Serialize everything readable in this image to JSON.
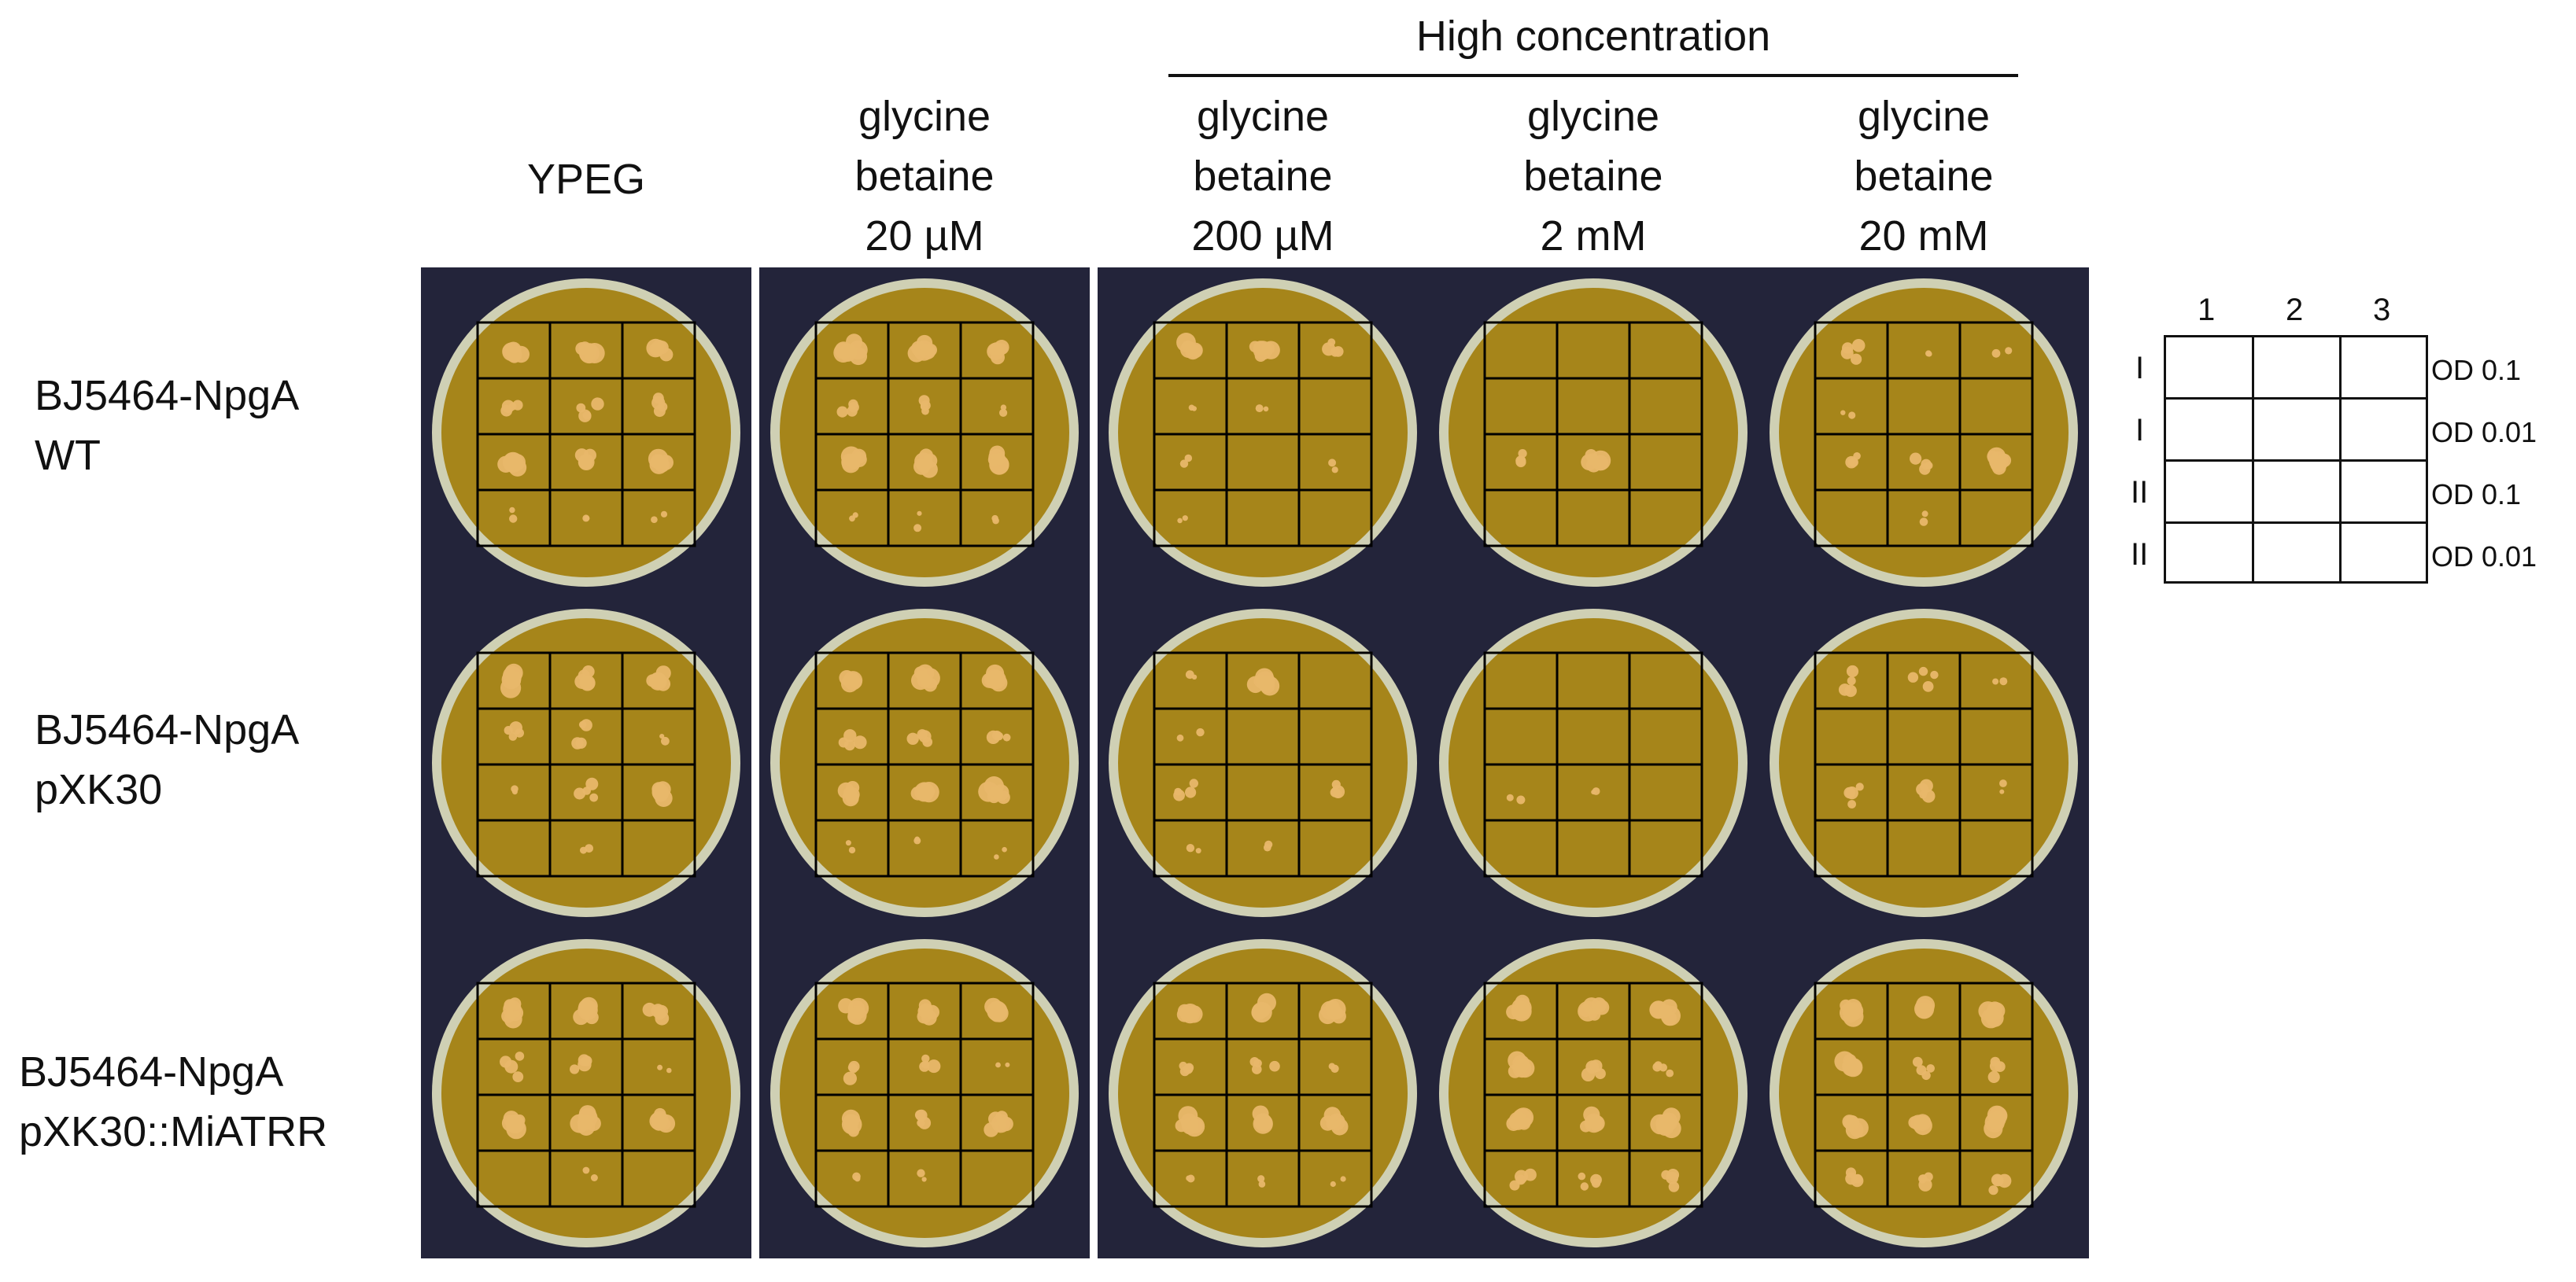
{
  "figure": {
    "high_concentration_label": "High concentration",
    "conditions": [
      {
        "lines": [
          "YPEG"
        ]
      },
      {
        "lines": [
          "glycine",
          "betaine",
          "20 µM"
        ]
      },
      {
        "lines": [
          "glycine",
          "betaine",
          "200 µM"
        ]
      },
      {
        "lines": [
          "glycine",
          "betaine",
          "2 mM"
        ]
      },
      {
        "lines": [
          "glycine",
          "betaine",
          "20 mM"
        ]
      }
    ],
    "strains": [
      {
        "lines": [
          "BJ5464-NpgA",
          "WT"
        ]
      },
      {
        "lines": [
          "BJ5464-NpgA",
          "pXK30"
        ]
      },
      {
        "lines": [
          "BJ5464-NpgA",
          "pXK30::MiATRR"
        ]
      }
    ]
  },
  "legend": {
    "columns": [
      "1",
      "2",
      "3"
    ],
    "rows": [
      {
        "roman": "I",
        "od": "OD 0.1"
      },
      {
        "roman": "I",
        "od": "OD 0.01"
      },
      {
        "roman": "II",
        "od": "OD 0.1"
      },
      {
        "roman": "II",
        "od": "OD 0.01"
      }
    ]
  },
  "colors": {
    "plate_background": "#23243a",
    "agar": "#a6851a",
    "agar_rim": "#cfd0b4",
    "colony": "#e8b76a",
    "grid_line": "#000000"
  },
  "plates": [
    [
      [
        3,
        3,
        3
      ],
      [
        2,
        2,
        2
      ],
      [
        3,
        3,
        3
      ],
      [
        1,
        1,
        1
      ]
    ],
    [
      [
        3,
        3,
        3
      ],
      [
        2,
        2,
        1
      ],
      [
        3,
        3,
        3
      ],
      [
        1,
        1,
        1
      ]
    ],
    [
      [
        3,
        3,
        2
      ],
      [
        1,
        1,
        0
      ],
      [
        1,
        0,
        1
      ],
      [
        1,
        0,
        0
      ]
    ],
    [
      [
        0,
        0,
        0
      ],
      [
        0,
        0,
        0
      ],
      [
        2,
        3,
        0
      ],
      [
        0,
        0,
        0
      ]
    ],
    [
      [
        2,
        1,
        1
      ],
      [
        1,
        0,
        0
      ],
      [
        2,
        2,
        3
      ],
      [
        0,
        1,
        0
      ]
    ],
    [
      [
        3,
        3,
        3
      ],
      [
        2,
        2,
        1
      ],
      [
        1,
        2,
        3
      ],
      [
        0,
        1,
        0
      ]
    ],
    [
      [
        3,
        3,
        3
      ],
      [
        2,
        2,
        2
      ],
      [
        3,
        3,
        3
      ],
      [
        1,
        1,
        1
      ]
    ],
    [
      [
        1,
        3,
        0
      ],
      [
        1,
        0,
        0
      ],
      [
        2,
        0,
        2
      ],
      [
        1,
        1,
        0
      ]
    ],
    [
      [
        0,
        0,
        0
      ],
      [
        0,
        0,
        0
      ],
      [
        1,
        1,
        0
      ],
      [
        0,
        0,
        0
      ]
    ],
    [
      [
        2,
        2,
        1
      ],
      [
        0,
        0,
        0
      ],
      [
        2,
        2,
        1
      ],
      [
        0,
        0,
        0
      ]
    ],
    [
      [
        3,
        3,
        3
      ],
      [
        2,
        2,
        1
      ],
      [
        3,
        3,
        3
      ],
      [
        0,
        1,
        0
      ]
    ],
    [
      [
        3,
        3,
        3
      ],
      [
        2,
        2,
        1
      ],
      [
        3,
        2,
        3
      ],
      [
        1,
        1,
        0
      ]
    ],
    [
      [
        3,
        3,
        3
      ],
      [
        2,
        2,
        1
      ],
      [
        3,
        3,
        3
      ],
      [
        1,
        1,
        1
      ]
    ],
    [
      [
        3,
        3,
        3
      ],
      [
        3,
        2,
        2
      ],
      [
        3,
        3,
        3
      ],
      [
        2,
        2,
        2
      ]
    ],
    [
      [
        3,
        3,
        3
      ],
      [
        3,
        2,
        2
      ],
      [
        3,
        3,
        3
      ],
      [
        2,
        2,
        2
      ]
    ]
  ]
}
